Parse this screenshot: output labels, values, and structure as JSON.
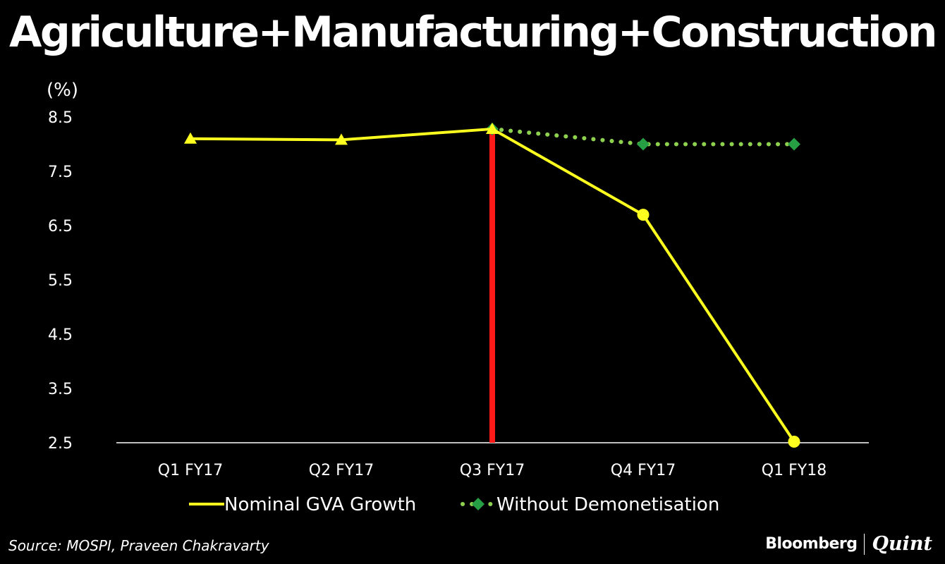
{
  "chart_data": {
    "type": "line",
    "title": "Agriculture+Manufacturing+Construction",
    "unit_label": "(%)",
    "xlabel": "",
    "ylabel": "(%)",
    "ylim": [
      2.5,
      8.5
    ],
    "yticks": [
      8.5,
      7.5,
      6.5,
      5.5,
      4.5,
      3.5,
      2.5
    ],
    "categories": [
      "Q1 FY17",
      "Q2 FY17",
      "Q3 FY17",
      "Q4 FY17",
      "Q1 FY18"
    ],
    "series": [
      {
        "name": "Nominal GVA Growth",
        "color": "#ffff1f",
        "values": [
          8.1,
          8.08,
          8.28,
          6.7,
          2.52
        ],
        "markers": [
          "triangle",
          "triangle",
          "triangle",
          "circle",
          "circle"
        ]
      },
      {
        "name": "Without Demonetisation",
        "color": "#8ed14f",
        "marker_color": "#27a045",
        "dash": "dotted",
        "values": [
          null,
          null,
          8.28,
          8.0,
          8.0
        ],
        "markers": [
          null,
          null,
          "diamond",
          "diamond",
          "diamond"
        ]
      }
    ],
    "annotations": [
      {
        "type": "vertical-line",
        "at_category": "Q3 FY17",
        "color": "#ff1a1a",
        "from": 2.5,
        "to": 8.28
      }
    ],
    "legend": {
      "placement": "bottom"
    }
  },
  "source": "Source: MOSPI, Praveen Chakravarty",
  "brand": {
    "name": "Bloomberg",
    "partner": "Quint"
  }
}
